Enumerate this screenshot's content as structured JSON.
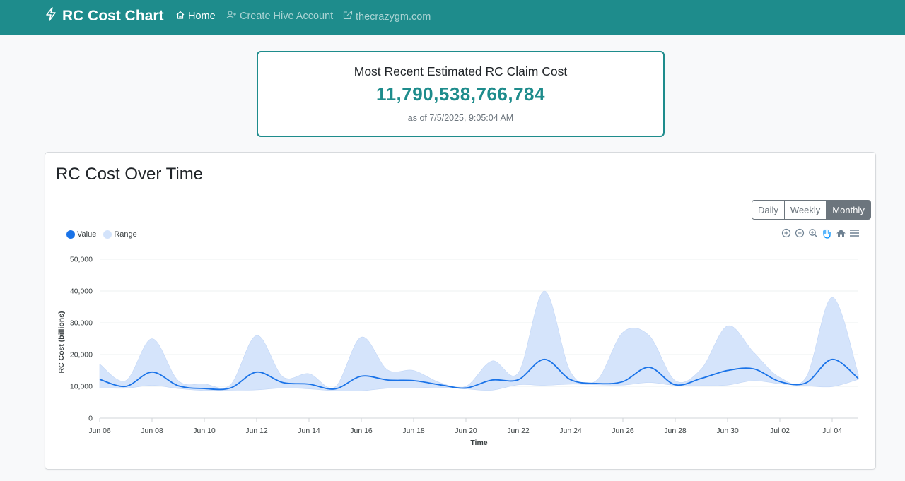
{
  "nav": {
    "brand": "RC Cost Chart",
    "links": [
      {
        "label": "Home",
        "icon": "home-icon",
        "active": true
      },
      {
        "label": "Create Hive Account",
        "icon": "user-plus-icon",
        "active": false
      },
      {
        "label": "thecrazygm.com",
        "icon": "external-link-icon",
        "active": false
      }
    ]
  },
  "stat": {
    "title": "Most Recent Estimated RC Claim Cost",
    "value": "11,790,538,766,784",
    "timestamp": "as of 7/5/2025, 9:05:04 AM"
  },
  "chart_card": {
    "title": "RC Cost Over Time",
    "buttons": [
      {
        "label": "Daily",
        "active": false
      },
      {
        "label": "Weekly",
        "active": false
      },
      {
        "label": "Monthly",
        "active": true
      }
    ],
    "toolbar": [
      "zoom-in-icon",
      "zoom-out-icon",
      "magnifier-icon",
      "pan-hand-icon",
      "home-reset-icon",
      "menu-icon"
    ]
  },
  "colors": {
    "brand": "#1e8c8c",
    "series_value": "#1a73e8",
    "series_range": "#d3e3fb"
  },
  "chart_data": {
    "type": "area",
    "xlabel": "Time",
    "ylabel": "RC Cost (billions)",
    "ylim": [
      0,
      50000
    ],
    "yticks": [
      0,
      10000,
      20000,
      30000,
      40000,
      50000
    ],
    "ytick_labels": [
      "0",
      "10,000",
      "20,000",
      "30,000",
      "40,000",
      "50,000"
    ],
    "xlim": [
      "2025-06-06",
      "2025-07-05"
    ],
    "xtick_labels": [
      "Jun 06",
      "Jun 08",
      "Jun 10",
      "Jun 12",
      "Jun 14",
      "Jun 16",
      "Jun 18",
      "Jun 20",
      "Jun 22",
      "Jun 24",
      "Jun 26",
      "Jun 28",
      "Jun 30",
      "Jul 02",
      "Jul 04"
    ],
    "grid": true,
    "legend_position": "top-left",
    "x": [
      "2025-06-06",
      "2025-06-07",
      "2025-06-08",
      "2025-06-09",
      "2025-06-10",
      "2025-06-11",
      "2025-06-12",
      "2025-06-13",
      "2025-06-14",
      "2025-06-15",
      "2025-06-16",
      "2025-06-17",
      "2025-06-18",
      "2025-06-19",
      "2025-06-20",
      "2025-06-21",
      "2025-06-22",
      "2025-06-23",
      "2025-06-24",
      "2025-06-25",
      "2025-06-26",
      "2025-06-27",
      "2025-06-28",
      "2025-06-29",
      "2025-06-30",
      "2025-07-01",
      "2025-07-02",
      "2025-07-03",
      "2025-07-04",
      "2025-07-05"
    ],
    "series": [
      {
        "name": "Value",
        "values": [
          12200,
          10000,
          14500,
          10200,
          9300,
          9500,
          14500,
          11200,
          10700,
          9200,
          13200,
          12000,
          11800,
          10500,
          9500,
          12000,
          12100,
          18500,
          12100,
          10900,
          11500,
          16000,
          10500,
          12500,
          15000,
          15500,
          11500,
          11100,
          18500,
          12500
        ]
      },
      {
        "name": "Range",
        "low": [
          9500,
          9400,
          10300,
          9300,
          8700,
          8800,
          8900,
          9500,
          9200,
          8600,
          8600,
          9400,
          9500,
          9700,
          9200,
          8800,
          10500,
          10300,
          10700,
          10500,
          10400,
          11200,
          10300,
          10200,
          10400,
          11800,
          10800,
          10200,
          9900,
          12200
        ],
        "high": [
          17000,
          11800,
          25000,
          11800,
          10800,
          10500,
          26000,
          13000,
          14000,
          9800,
          25500,
          15200,
          15000,
          11200,
          10000,
          18000,
          14200,
          40000,
          14500,
          11900,
          27000,
          26000,
          11800,
          15500,
          29000,
          20700,
          12800,
          12800,
          38000,
          13800
        ]
      }
    ]
  }
}
